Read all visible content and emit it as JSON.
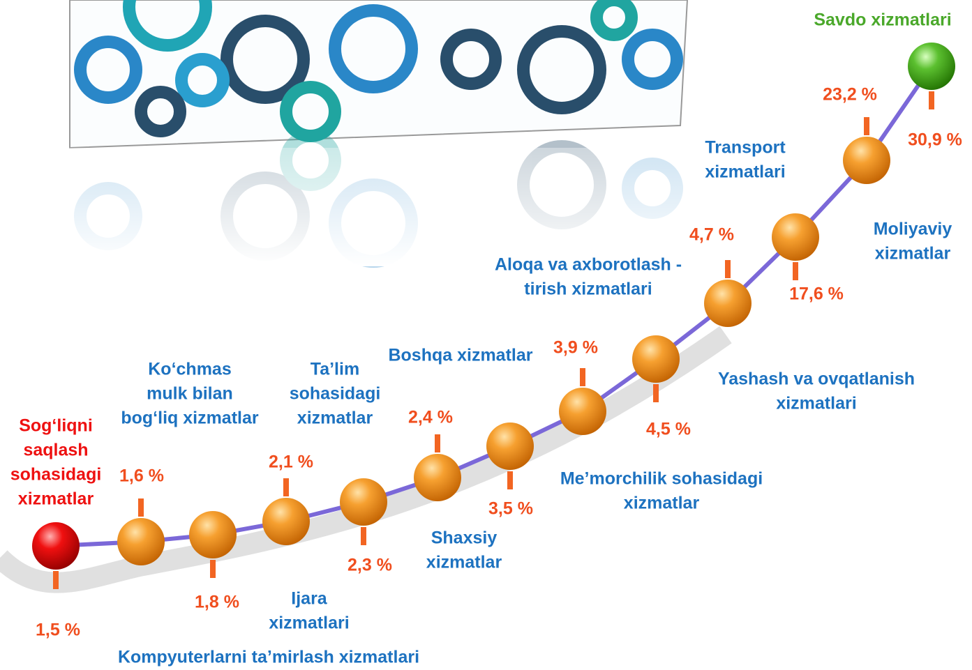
{
  "nodes": [
    {
      "label": [
        "Sog‘liqni",
        "saqlash",
        "sohasidagi",
        "xizmatlar"
      ],
      "value": "1,5 %"
    },
    {
      "label": [
        "Kompyuterlarni ta’mirlash xizmatlari"
      ],
      "value": "1,6 %"
    },
    {
      "label": [
        "Ko‘chmas",
        "mulk bilan",
        "bog‘liq xizmatlar"
      ],
      "value": "1,8 %"
    },
    {
      "label": [
        "Ijara",
        "xizmatlari"
      ],
      "value": "2,1 %"
    },
    {
      "label": [
        "Ta’lim",
        "sohasidagi",
        "xizmatlar"
      ],
      "value": "2,3 %"
    },
    {
      "label": [
        "Shaxsiy",
        "xizmatlar"
      ],
      "value": "2,4 %"
    },
    {
      "label": [
        "Me’morchilik sohasidagi",
        "xizmatlar"
      ],
      "value": "3,5  %"
    },
    {
      "label": [
        "Boshqa xizmatlar"
      ],
      "value": "3,9 %"
    },
    {
      "label": [
        "Yashash va ovqatlanish",
        "xizmatlari"
      ],
      "value": "4,5 %"
    },
    {
      "label": [
        "Aloqa va axborotlash -",
        "tirish xizmatlari"
      ],
      "value": "4,7 %"
    },
    {
      "label": [
        "Moliyaviy",
        "xizmatlar"
      ],
      "value": "17,6 %"
    },
    {
      "label": [
        "Transport",
        "xizmatlari"
      ],
      "value": "23,2 %"
    },
    {
      "label": [
        "Savdo xizmatlari"
      ],
      "value": "30,9 %"
    }
  ]
}
